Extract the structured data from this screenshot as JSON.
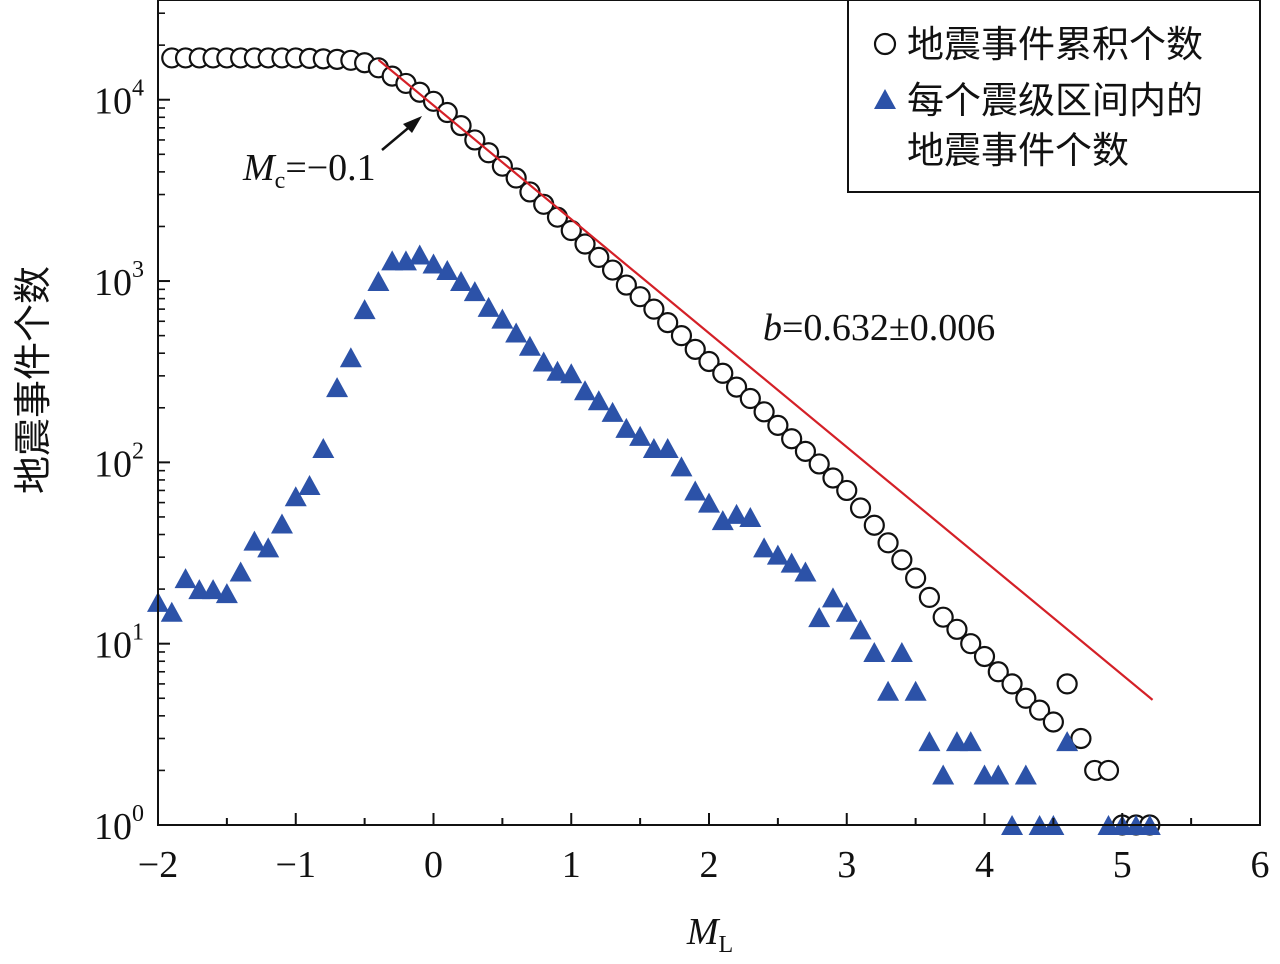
{
  "chart_data": {
    "type": "scatter",
    "xlabel": "M",
    "xlabel_sub": "L",
    "ylabel": "地震事件个数",
    "xlim": [
      -2,
      6
    ],
    "ylim": [
      1,
      40000
    ],
    "yscale": "log",
    "xticks": [
      "−2",
      "−1",
      "0",
      "1",
      "2",
      "3",
      "4",
      "5",
      "6"
    ],
    "yticks": [
      {
        "base": "10",
        "exp": "0"
      },
      {
        "base": "10",
        "exp": "1"
      },
      {
        "base": "10",
        "exp": "2"
      },
      {
        "base": "10",
        "exp": "3"
      },
      {
        "base": "10",
        "exp": "4"
      }
    ],
    "legend_position": "top-right",
    "series": [
      {
        "name": "地震事件累积个数",
        "marker": "open-circle",
        "color": "#111111",
        "x": [
          -1.9,
          -1.8,
          -1.7,
          -1.6,
          -1.5,
          -1.4,
          -1.3,
          -1.2,
          -1.1,
          -1.0,
          -0.9,
          -0.8,
          -0.7,
          -0.6,
          -0.5,
          -0.4,
          -0.3,
          -0.2,
          -0.1,
          0.0,
          0.1,
          0.2,
          0.3,
          0.4,
          0.5,
          0.6,
          0.7,
          0.8,
          0.9,
          1.0,
          1.1,
          1.2,
          1.3,
          1.4,
          1.5,
          1.6,
          1.7,
          1.8,
          1.9,
          2.0,
          2.1,
          2.2,
          2.3,
          2.4,
          2.5,
          2.6,
          2.7,
          2.8,
          2.9,
          3.0,
          3.1,
          3.2,
          3.3,
          3.4,
          3.5,
          3.6,
          3.7,
          3.8,
          3.9,
          4.0,
          4.1,
          4.2,
          4.3,
          4.4,
          4.5,
          4.6,
          4.7,
          4.8,
          4.9,
          5.0,
          5.1,
          5.2
        ],
        "y": [
          17000,
          17000,
          17000,
          17000,
          17000,
          17000,
          17000,
          17000,
          17000,
          17000,
          16900,
          16800,
          16700,
          16500,
          16000,
          15000,
          13500,
          12300,
          11000,
          9800,
          8500,
          7200,
          6000,
          5100,
          4300,
          3700,
          3100,
          2650,
          2250,
          1900,
          1600,
          1350,
          1150,
          950,
          820,
          700,
          590,
          500,
          420,
          360,
          310,
          260,
          225,
          190,
          160,
          135,
          115,
          98,
          82,
          70,
          56,
          45,
          36,
          29,
          23,
          18,
          14,
          12,
          10,
          8.5,
          7,
          6,
          5,
          4.3,
          3.7,
          6,
          3,
          2,
          2,
          1,
          1,
          1
        ]
      },
      {
        "name": "每个震级区间内的地震事件个数",
        "legend_lines": [
          "每个震级区间内的",
          "地震事件个数"
        ],
        "marker": "filled-triangle",
        "color": "#2c52a8",
        "x": [
          -2.0,
          -1.9,
          -1.8,
          -1.7,
          -1.6,
          -1.5,
          -1.4,
          -1.3,
          -1.2,
          -1.1,
          -1.0,
          -0.9,
          -0.8,
          -0.7,
          -0.6,
          -0.5,
          -0.4,
          -0.3,
          -0.2,
          -0.1,
          0.0,
          0.1,
          0.2,
          0.3,
          0.4,
          0.5,
          0.6,
          0.7,
          0.8,
          0.9,
          1.0,
          1.1,
          1.2,
          1.3,
          1.4,
          1.5,
          1.6,
          1.7,
          1.8,
          1.9,
          2.0,
          2.1,
          2.2,
          2.3,
          2.4,
          2.5,
          2.6,
          2.7,
          2.8,
          2.9,
          3.0,
          3.1,
          3.2,
          3.3,
          3.4,
          3.5,
          3.6,
          3.7,
          3.8,
          3.9,
          4.0,
          4.1,
          4.2,
          4.3,
          4.4,
          4.5,
          4.6,
          4.9,
          5.0,
          5.1,
          5.2
        ],
        "y": [
          17,
          15,
          23,
          20,
          20,
          19,
          25,
          37,
          34,
          46,
          65,
          75,
          120,
          260,
          380,
          700,
          1000,
          1300,
          1300,
          1400,
          1250,
          1150,
          1000,
          880,
          720,
          620,
          520,
          440,
          360,
          320,
          310,
          250,
          220,
          190,
          155,
          140,
          120,
          120,
          95,
          70,
          60,
          48,
          52,
          50,
          34,
          31,
          28,
          25,
          14,
          18,
          15,
          12,
          9,
          5.5,
          9,
          5.5,
          2.9,
          1.9,
          2.9,
          2.9,
          1.9,
          1.9,
          1,
          1.9,
          1,
          1,
          2.9,
          1,
          1,
          1,
          1
        ]
      },
      {
        "name": "fit",
        "type": "line",
        "color": "#d42027",
        "x": [
          -0.4,
          5.22
        ],
        "y": [
          16600,
          4.9
        ]
      }
    ],
    "annotations": {
      "mc": {
        "label": "M",
        "sub": "c",
        "text": "=−0.1",
        "x": -0.1
      },
      "b_value": {
        "label": "b",
        "text": "=0.632±0.006"
      }
    }
  }
}
